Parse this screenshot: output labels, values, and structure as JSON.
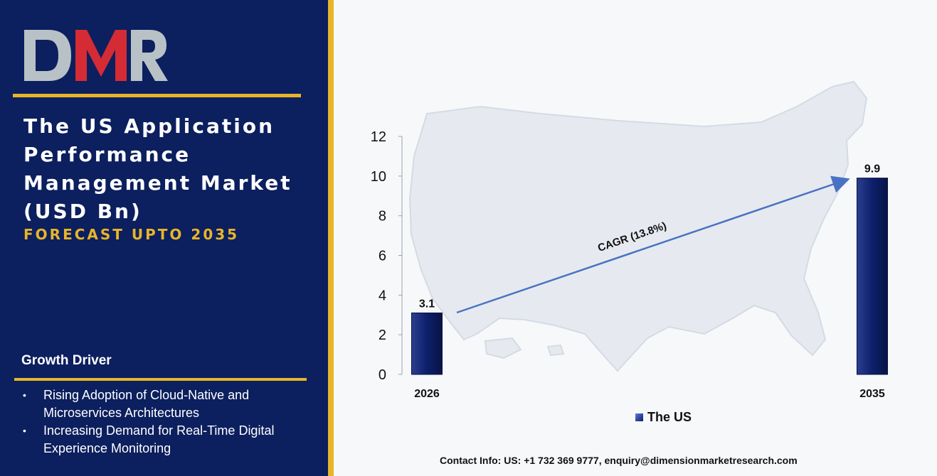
{
  "brand": {
    "logo_text": "DMR",
    "colors": {
      "navy": "#0c1f5e",
      "gold": "#e7b52a",
      "logo_red": "#d52b34",
      "logo_grey": "#b8c1c6"
    }
  },
  "sidebar": {
    "title_lines": [
      "The US Application",
      "Performance",
      "Management Market",
      "(USD Bn)"
    ],
    "subtitle": "FORECAST UPTO 2035",
    "growth_driver_heading": "Growth Driver",
    "growth_drivers": [
      "Rising Adoption of Cloud-Native and Microservices Architectures",
      "Increasing Demand for Real-Time Digital Experience Monitoring"
    ]
  },
  "chart_data": {
    "type": "bar",
    "categories": [
      "2026",
      "2035"
    ],
    "series": [
      {
        "name": "The US",
        "values": [
          3.1,
          9.9
        ]
      }
    ],
    "data_labels": [
      "3.1",
      "9.9"
    ],
    "ylim": [
      0,
      12
    ],
    "yticks": [
      0,
      2,
      4,
      6,
      8,
      10,
      12
    ],
    "annotation": "CAGR (13.8%)",
    "legend": "bottom",
    "grid": false,
    "bar_color": "#0d1f6b",
    "arrow_color": "#4a72c4",
    "background": "map of the United States"
  },
  "footer": {
    "contact": "Contact Info: US: +1 732 369 9777, enquiry@dimensionmarketresearch.com"
  }
}
